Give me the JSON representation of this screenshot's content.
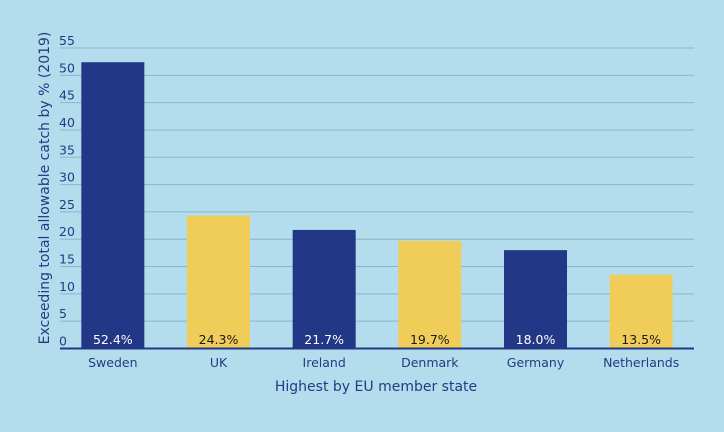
{
  "colors": {
    "background": "#b3ddec",
    "dark_bar": "#233787",
    "light_bar": "#f0cd58",
    "axis_text": "#243a84",
    "grid": "#89b6cb",
    "label_on_dark": "#ffffff",
    "label_on_light": "#1a1a1a"
  },
  "chart_data": {
    "type": "bar",
    "title": "",
    "xlabel": "Highest by EU member state",
    "ylabel": "Exceeding total allowable catch by % (2019)",
    "ylim": [
      0,
      55
    ],
    "yticks": [
      0,
      5,
      10,
      15,
      20,
      25,
      30,
      35,
      40,
      45,
      50,
      55
    ],
    "grid": true,
    "legend": "none",
    "categories": [
      "Sweden",
      "UK",
      "Ireland",
      "Denmark",
      "Germany",
      "Netherlands"
    ],
    "values": [
      52.4,
      24.3,
      21.7,
      19.7,
      18.0,
      13.5
    ],
    "data_labels": [
      "52.4%",
      "24.3%",
      "21.7%",
      "19.7%",
      "18.0%",
      "13.5%"
    ],
    "bar_colors": [
      "#233787",
      "#f0cd58",
      "#233787",
      "#f0cd58",
      "#233787",
      "#f0cd58"
    ]
  }
}
